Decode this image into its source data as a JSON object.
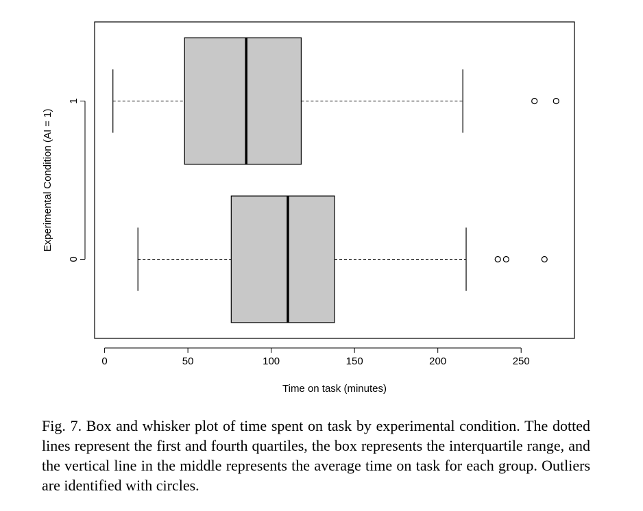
{
  "chart_data": {
    "type": "boxplot",
    "orientation": "horizontal",
    "xlabel": "Time on task (minutes)",
    "ylabel": "Experimental Condition (AI = 1)",
    "xlim": [
      -6,
      282
    ],
    "ylim": [
      -0.5,
      1.5
    ],
    "xticks": [
      0,
      50,
      100,
      150,
      200,
      250
    ],
    "yticks": [
      0,
      1
    ],
    "box_fill": "#c8c8c8",
    "groups": [
      {
        "label": "0",
        "position": 0,
        "whisker_low": 20,
        "q1": 76,
        "median": 110,
        "q3": 138,
        "whisker_high": 217,
        "outliers": [
          236,
          241,
          264
        ]
      },
      {
        "label": "1",
        "position": 1,
        "whisker_low": 5,
        "q1": 48,
        "median": 85,
        "q3": 118,
        "whisker_high": 215,
        "outliers": [
          258,
          271
        ]
      }
    ]
  },
  "caption": "Fig. 7.  Box and whisker plot of time spent on task by experimental condition. The dotted lines represent the first and fourth quartiles, the box represents the interquartile range, and the vertical line in the middle represents the average time on task for each group. Outliers are identified with circles."
}
